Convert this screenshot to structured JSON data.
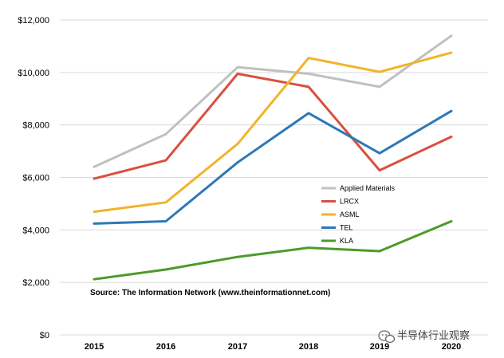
{
  "chart_data": {
    "type": "line",
    "x": [
      "2015",
      "2016",
      "2017",
      "2018",
      "2019",
      "2020"
    ],
    "ylim": [
      0,
      12000
    ],
    "yticks": [
      0,
      2000,
      4000,
      6000,
      8000,
      10000,
      12000
    ],
    "ytick_labels": [
      "$0",
      "$2,000",
      "$4,000",
      "$6,000",
      "$8,000",
      "$10,000",
      "$12,000"
    ],
    "grid": true,
    "legend_position": "center-right",
    "series": [
      {
        "name": "Applied Materials",
        "color": "#c0c0c0",
        "values": [
          6400,
          7650,
          10200,
          9950,
          9450,
          11400
        ]
      },
      {
        "name": "LRCX",
        "color": "#d9503f",
        "values": [
          5950,
          6650,
          9950,
          9450,
          6270,
          7550
        ]
      },
      {
        "name": "ASML",
        "color": "#f0b429",
        "values": [
          4690,
          5050,
          7280,
          10550,
          10020,
          10750
        ]
      },
      {
        "name": "TEL",
        "color": "#2e78b7",
        "values": [
          4240,
          4330,
          6570,
          8450,
          6920,
          8530
        ]
      },
      {
        "name": "KLA",
        "color": "#4e9a2a",
        "values": [
          2120,
          2490,
          2970,
          3320,
          3190,
          4330
        ]
      }
    ],
    "annotation": "Source: The Information Network (www.theinformationnet.com)"
  },
  "watermark": {
    "text": "半导体行业观察",
    "icon": "wechat-icon"
  }
}
